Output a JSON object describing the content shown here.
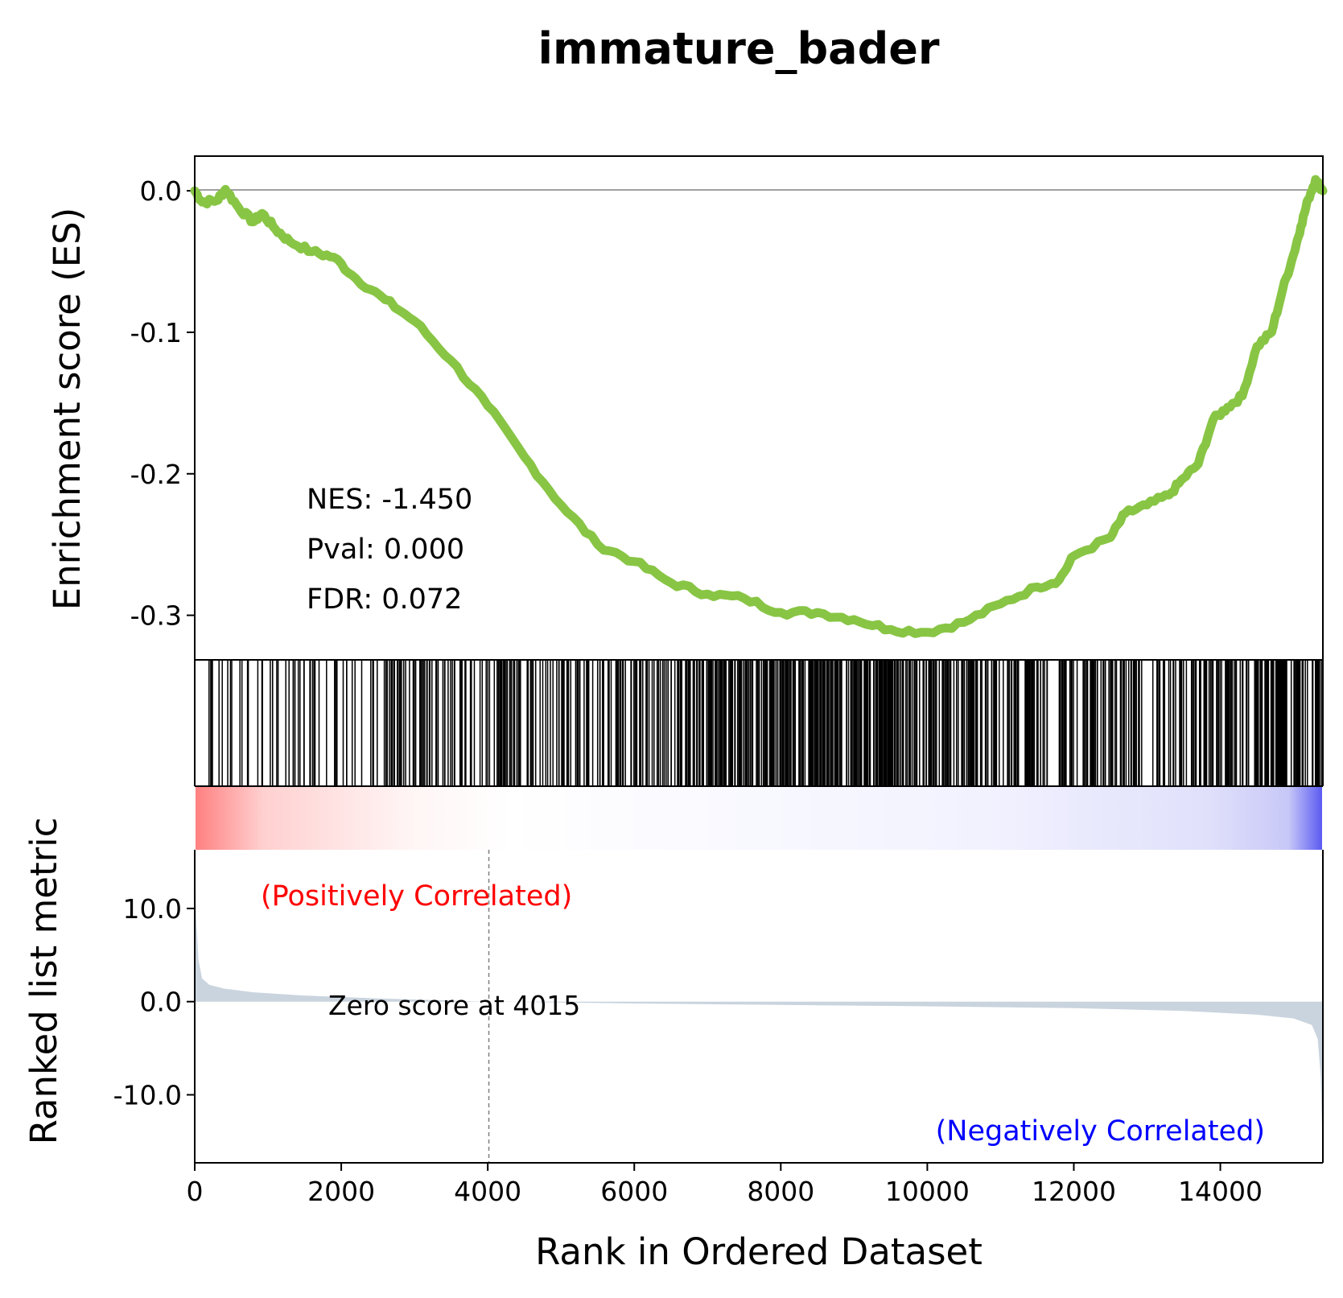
{
  "chart_data": {
    "type": "line",
    "title": "immature_bader",
    "xlabel": "Rank in Ordered Dataset",
    "es_ylabel": "Enrichment score (ES)",
    "rank_ylabel": "Ranked list metric",
    "xlim": [
      0,
      15400
    ],
    "es_ylim": [
      -0.3315,
      0.0245
    ],
    "rank_ylim": [
      -17.3,
      16.3
    ],
    "x_ticks": [
      0,
      2000,
      4000,
      6000,
      8000,
      10000,
      12000,
      14000
    ],
    "x_tick_labels": [
      "0",
      "2000",
      "4000",
      "6000",
      "8000",
      "10000",
      "12000",
      "14000"
    ],
    "es_ticks": [
      0.0,
      -0.1,
      -0.2,
      -0.3
    ],
    "es_tick_labels": [
      "0.0",
      "-0.1",
      "-0.2",
      "-0.3"
    ],
    "rank_ticks": [
      10.0,
      0.0,
      -10.0
    ],
    "rank_tick_labels": [
      "10.0",
      "0.0",
      "-10.0"
    ],
    "stats": {
      "nes": "NES: -1.450",
      "pval": "Pval: 0.000",
      "fdr": "FDR: 0.072"
    },
    "zero_score": {
      "rank": 4015,
      "label": "Zero score at 4015"
    },
    "positive_label": "(Positively Correlated)",
    "negative_label": "(Negatively Correlated)",
    "colors": {
      "es_line": "#88c544",
      "metric_fill": "#c9d4de",
      "positive": "#ff0000",
      "negative": "#0000ff",
      "hits": "#000000"
    },
    "series": [
      {
        "values": [
          {
            "x": 0,
            "y": 0.0
          },
          {
            "x": 100,
            "y": -0.008
          },
          {
            "x": 300,
            "y": -0.007
          },
          {
            "x": 420,
            "y": 0.001
          },
          {
            "x": 600,
            "y": -0.012
          },
          {
            "x": 800,
            "y": -0.022
          },
          {
            "x": 920,
            "y": -0.016
          },
          {
            "x": 1100,
            "y": -0.027
          },
          {
            "x": 1300,
            "y": -0.036
          },
          {
            "x": 1600,
            "y": -0.043
          },
          {
            "x": 1900,
            "y": -0.047
          },
          {
            "x": 2200,
            "y": -0.062
          },
          {
            "x": 2600,
            "y": -0.077
          },
          {
            "x": 3000,
            "y": -0.092
          },
          {
            "x": 3500,
            "y": -0.12
          },
          {
            "x": 4000,
            "y": -0.152
          },
          {
            "x": 4500,
            "y": -0.188
          },
          {
            "x": 5000,
            "y": -0.222
          },
          {
            "x": 5500,
            "y": -0.25
          },
          {
            "x": 6000,
            "y": -0.262
          },
          {
            "x": 6500,
            "y": -0.277
          },
          {
            "x": 7000,
            "y": -0.285
          },
          {
            "x": 7500,
            "y": -0.288
          },
          {
            "x": 8000,
            "y": -0.298
          },
          {
            "x": 8500,
            "y": -0.298
          },
          {
            "x": 9000,
            "y": -0.303
          },
          {
            "x": 9500,
            "y": -0.31
          },
          {
            "x": 10000,
            "y": -0.312
          },
          {
            "x": 10500,
            "y": -0.305
          },
          {
            "x": 11000,
            "y": -0.292
          },
          {
            "x": 11500,
            "y": -0.28
          },
          {
            "x": 11800,
            "y": -0.275
          },
          {
            "x": 12000,
            "y": -0.258
          },
          {
            "x": 12500,
            "y": -0.245
          },
          {
            "x": 12700,
            "y": -0.228
          },
          {
            "x": 13000,
            "y": -0.222
          },
          {
            "x": 13300,
            "y": -0.215
          },
          {
            "x": 13500,
            "y": -0.203
          },
          {
            "x": 13700,
            "y": -0.193
          },
          {
            "x": 13900,
            "y": -0.162
          },
          {
            "x": 14100,
            "y": -0.153
          },
          {
            "x": 14300,
            "y": -0.145
          },
          {
            "x": 14500,
            "y": -0.11
          },
          {
            "x": 14700,
            "y": -0.1
          },
          {
            "x": 14850,
            "y": -0.07
          },
          {
            "x": 15000,
            "y": -0.045
          },
          {
            "x": 15100,
            "y": -0.025
          },
          {
            "x": 15200,
            "y": -0.006
          },
          {
            "x": 15300,
            "y": 0.008
          },
          {
            "x": 15400,
            "y": 0.0
          }
        ]
      }
    ],
    "rank_metric": [
      {
        "x": 0,
        "y": 16.0
      },
      {
        "x": 20,
        "y": 9.0
      },
      {
        "x": 50,
        "y": 4.5
      },
      {
        "x": 100,
        "y": 2.5
      },
      {
        "x": 200,
        "y": 1.8
      },
      {
        "x": 400,
        "y": 1.4
      },
      {
        "x": 800,
        "y": 1.0
      },
      {
        "x": 1500,
        "y": 0.65
      },
      {
        "x": 2500,
        "y": 0.35
      },
      {
        "x": 4015,
        "y": 0.0
      },
      {
        "x": 6000,
        "y": -0.2
      },
      {
        "x": 8000,
        "y": -0.35
      },
      {
        "x": 10000,
        "y": -0.5
      },
      {
        "x": 12000,
        "y": -0.7
      },
      {
        "x": 13500,
        "y": -1.0
      },
      {
        "x": 14500,
        "y": -1.4
      },
      {
        "x": 15000,
        "y": -1.8
      },
      {
        "x": 15250,
        "y": -2.5
      },
      {
        "x": 15330,
        "y": -4.0
      },
      {
        "x": 15370,
        "y": -8.0
      },
      {
        "x": 15400,
        "y": -17.0
      }
    ],
    "hit_density": [
      {
        "from": 0,
        "to": 900,
        "count": 14
      },
      {
        "from": 900,
        "to": 2600,
        "count": 40
      },
      {
        "from": 2600,
        "to": 4000,
        "count": 60
      },
      {
        "from": 4000,
        "to": 5200,
        "count": 55
      },
      {
        "from": 5200,
        "to": 6700,
        "count": 75
      },
      {
        "from": 6700,
        "to": 7500,
        "count": 80
      },
      {
        "from": 7500,
        "to": 8500,
        "count": 90
      },
      {
        "from": 8500,
        "to": 9500,
        "count": 100
      },
      {
        "from": 9500,
        "to": 11500,
        "count": 120
      },
      {
        "from": 11500,
        "to": 13000,
        "count": 70
      },
      {
        "from": 13000,
        "to": 14500,
        "count": 70
      },
      {
        "from": 14500,
        "to": 15400,
        "count": 70
      }
    ]
  }
}
